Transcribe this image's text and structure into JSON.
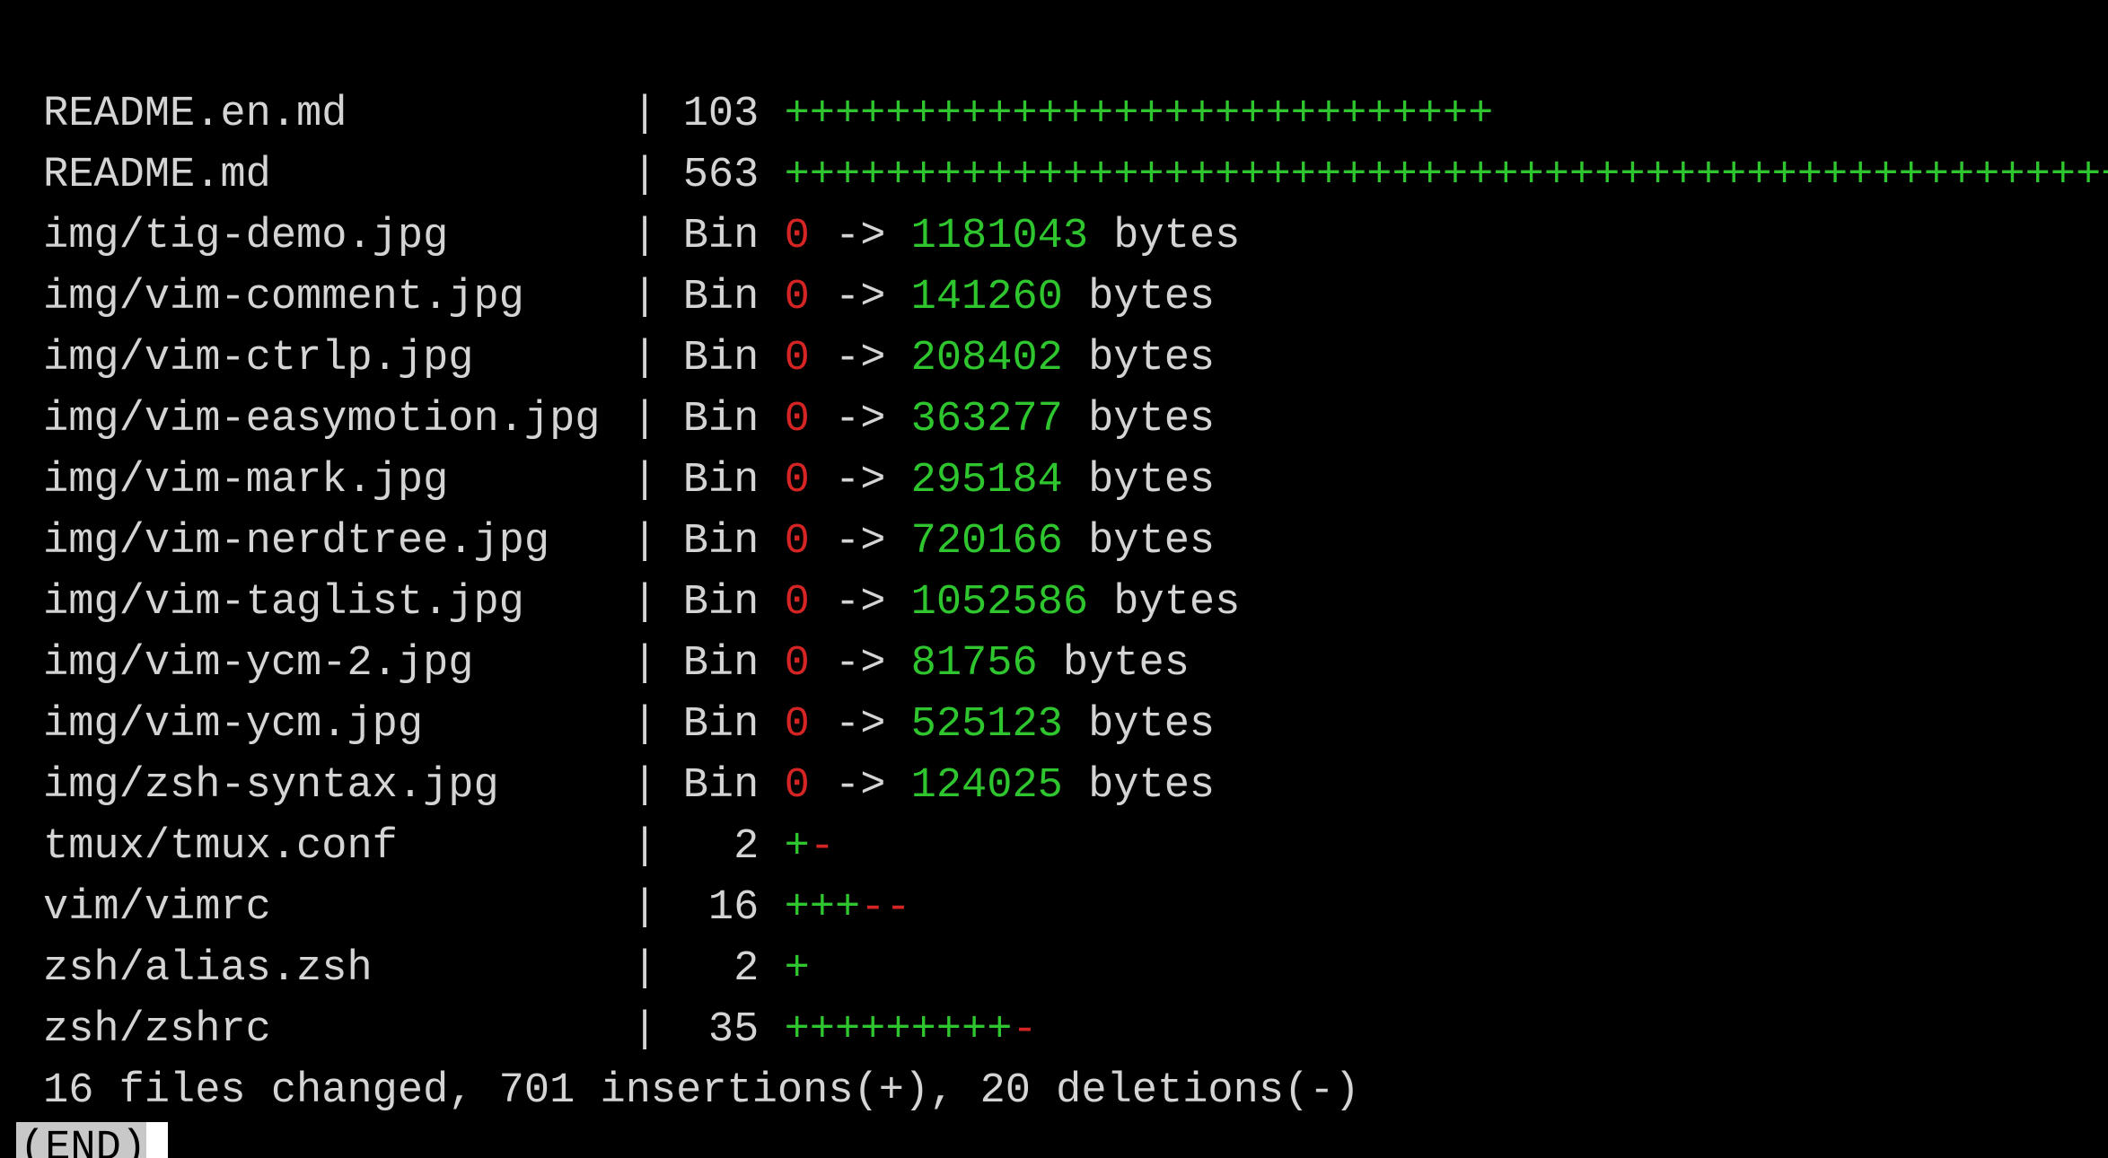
{
  "colors": {
    "text": "#d4d4d4",
    "insertion": "#2ec52e",
    "deletion": "#d42424",
    "background": "#000000"
  },
  "files": [
    {
      "name": "README.en.md",
      "count": "103",
      "plus": "++++++++++++++++++++++++++++",
      "minus": ""
    },
    {
      "name": "README.md",
      "count": "563",
      "plus": "+++++++++++++++++++++++++++++++++++++++++++++++++++++++++++++++++++++++++++++++++++++++++++++++++++++++++++++++++++++++++++++++++++++++++++++++++++++++++",
      "minus": ""
    },
    {
      "name": "img/tig-demo.jpg",
      "bin": "Bin",
      "from": "0",
      "arrow": "->",
      "to": "1181043",
      "unit": "bytes"
    },
    {
      "name": "img/vim-comment.jpg",
      "bin": "Bin",
      "from": "0",
      "arrow": "->",
      "to": "141260",
      "unit": "bytes"
    },
    {
      "name": "img/vim-ctrlp.jpg",
      "bin": "Bin",
      "from": "0",
      "arrow": "->",
      "to": "208402",
      "unit": "bytes"
    },
    {
      "name": "img/vim-easymotion.jpg",
      "bin": "Bin",
      "from": "0",
      "arrow": "->",
      "to": "363277",
      "unit": "bytes"
    },
    {
      "name": "img/vim-mark.jpg",
      "bin": "Bin",
      "from": "0",
      "arrow": "->",
      "to": "295184",
      "unit": "bytes"
    },
    {
      "name": "img/vim-nerdtree.jpg",
      "bin": "Bin",
      "from": "0",
      "arrow": "->",
      "to": "720166",
      "unit": "bytes"
    },
    {
      "name": "img/vim-taglist.jpg",
      "bin": "Bin",
      "from": "0",
      "arrow": "->",
      "to": "1052586",
      "unit": "bytes"
    },
    {
      "name": "img/vim-ycm-2.jpg",
      "bin": "Bin",
      "from": "0",
      "arrow": "->",
      "to": "81756",
      "unit": "bytes"
    },
    {
      "name": "img/vim-ycm.jpg",
      "bin": "Bin",
      "from": "0",
      "arrow": "->",
      "to": "525123",
      "unit": "bytes"
    },
    {
      "name": "img/zsh-syntax.jpg",
      "bin": "Bin",
      "from": "0",
      "arrow": "->",
      "to": "124025",
      "unit": "bytes"
    },
    {
      "name": "tmux/tmux.conf",
      "count": "  2",
      "plus": "+",
      "minus": "-"
    },
    {
      "name": "vim/vimrc",
      "count": " 16",
      "plus": "+++",
      "minus": "--"
    },
    {
      "name": "zsh/alias.zsh",
      "count": "  2",
      "plus": "+",
      "minus": ""
    },
    {
      "name": "zsh/zshrc",
      "count": " 35",
      "plus": "+++++++++",
      "minus": "-"
    }
  ],
  "separator": "|",
  "summary": "16 files changed, 701 insertions(+), 20 deletions(-)",
  "pager_prompt": "(END)"
}
